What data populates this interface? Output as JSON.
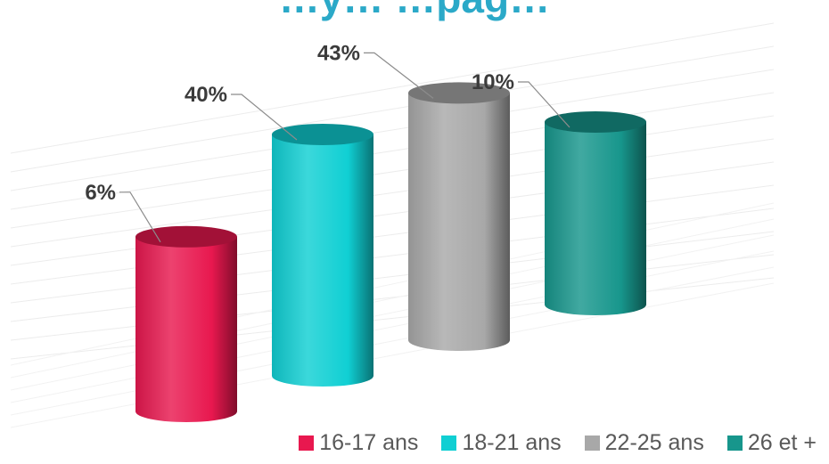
{
  "chart_data": {
    "type": "bar",
    "title": "…y… …pag…",
    "categories": [
      "16-17 ans",
      "18-21 ans",
      "22-25 ans",
      "26 et +"
    ],
    "values": [
      6,
      40,
      43,
      10
    ],
    "value_unit": "%",
    "data_labels": [
      "6%",
      "40%",
      "43%",
      "10%"
    ],
    "colors": [
      "#e8184f",
      "#10cfd3",
      "#a8a8a8",
      "#17968c"
    ],
    "bar_shape": "cylinder",
    "grid": true,
    "legend_position": "bottom-right"
  }
}
